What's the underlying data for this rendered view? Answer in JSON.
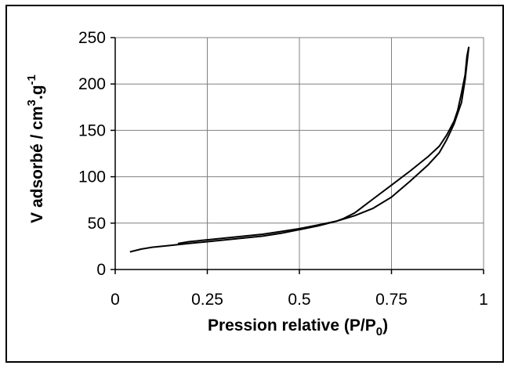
{
  "chart_data": {
    "type": "line",
    "title": "",
    "xlabel": "Pression relative (P/P",
    "xlabel_subscript": "0",
    "xlabel_suffix": ")",
    "ylabel": "V adsorbé / cm",
    "ylabel_sup1": "3",
    "ylabel_mid": ".g",
    "ylabel_sup2": "-1",
    "xlim": [
      0,
      1
    ],
    "ylim": [
      0,
      250
    ],
    "x_ticks": [
      0,
      0.25,
      0.5,
      0.75,
      1
    ],
    "x_tick_labels": [
      "0",
      "0.25",
      "0.5",
      "0.75",
      "1"
    ],
    "y_ticks": [
      0,
      50,
      100,
      150,
      200,
      250
    ],
    "y_tick_labels": [
      "0",
      "50",
      "100",
      "150",
      "200",
      "250"
    ],
    "grid": true,
    "legend": "none",
    "line_color": "#000000",
    "series": [
      {
        "x": [
          0.04,
          0.07,
          0.1,
          0.15,
          0.2,
          0.25,
          0.3,
          0.35,
          0.4,
          0.45,
          0.5,
          0.55,
          0.6,
          0.65,
          0.7,
          0.75,
          0.8,
          0.85,
          0.88,
          0.9,
          0.92,
          0.94,
          0.95,
          0.96
        ],
        "y": [
          19,
          22,
          24,
          26,
          28,
          30,
          32,
          34,
          36,
          39,
          43,
          47,
          52,
          58,
          66,
          78,
          95,
          113,
          126,
          140,
          157,
          180,
          205,
          240
        ]
      },
      {
        "x": [
          0.96,
          0.955,
          0.95,
          0.94,
          0.93,
          0.92,
          0.9,
          0.88,
          0.85,
          0.8,
          0.75,
          0.7,
          0.67,
          0.65,
          0.62,
          0.6,
          0.55,
          0.5,
          0.45,
          0.4,
          0.35,
          0.3,
          0.25,
          0.2,
          0.17
        ],
        "y": [
          240,
          230,
          210,
          190,
          172,
          160,
          145,
          133,
          122,
          106,
          91,
          76,
          67,
          61,
          55,
          52,
          48,
          44,
          41,
          38,
          36,
          34,
          32,
          30,
          28
        ]
      }
    ]
  }
}
